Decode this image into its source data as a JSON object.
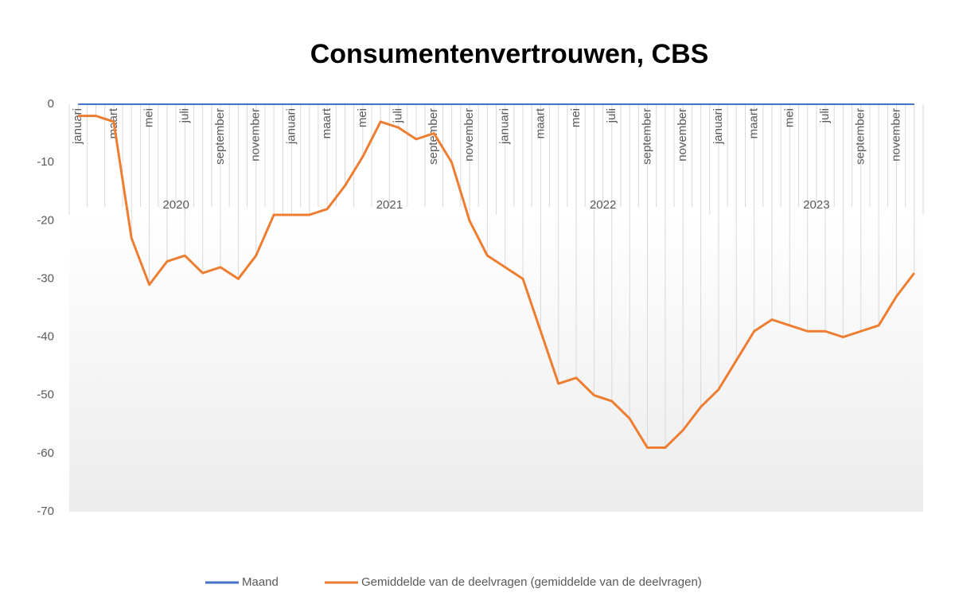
{
  "chart_data": {
    "type": "line",
    "title": "Consumentenvertrouwen, CBS",
    "categories": [
      "januari",
      null,
      "maart",
      null,
      "mei",
      null,
      "juli",
      null,
      "september",
      null,
      "november",
      null,
      "januari",
      null,
      "maart",
      null,
      "mei",
      null,
      "juli",
      null,
      "september",
      null,
      "november",
      null,
      "januari",
      null,
      "maart",
      null,
      "mei",
      null,
      "juli",
      null,
      "september",
      null,
      "november",
      null,
      "januari",
      null,
      "maart",
      null,
      "mei",
      null,
      "juli",
      null,
      "september",
      null,
      "november",
      null
    ],
    "groups": [
      "2020",
      "2021",
      "2022",
      "2023"
    ],
    "series": [
      {
        "name": "Maand",
        "color": "#4472c4",
        "values": [
          0,
          0,
          0,
          0,
          0,
          0,
          0,
          0,
          0,
          0,
          0,
          0,
          0,
          0,
          0,
          0,
          0,
          0,
          0,
          0,
          0,
          0,
          0,
          0,
          0,
          0,
          0,
          0,
          0,
          0,
          0,
          0,
          0,
          0,
          0,
          0,
          0,
          0,
          0,
          0,
          0,
          0,
          0,
          0,
          0,
          0,
          0,
          0
        ]
      },
      {
        "name": "Gemiddelde van de deelvragen (gemiddelde van de deelvragen)",
        "color": "#ed7d31",
        "values": [
          -2,
          -2,
          -3,
          -23,
          -31,
          -27,
          -26,
          -29,
          -28,
          -30,
          -26,
          -19,
          -19,
          -19,
          -18,
          -14,
          -9,
          -3,
          -4,
          -6,
          -5,
          -10,
          -20,
          -26,
          -28,
          -30,
          -39,
          -48,
          -47,
          -50,
          -51,
          -54,
          -59,
          -59,
          -56,
          -52,
          -49,
          -44,
          -39,
          -37,
          -38,
          -39,
          -39,
          -40,
          -39,
          -38,
          -33,
          -29
        ]
      }
    ],
    "ylim": [
      -70,
      0
    ],
    "yticks": [
      0,
      -10,
      -20,
      -30,
      -40,
      -50,
      -60,
      -70
    ]
  }
}
